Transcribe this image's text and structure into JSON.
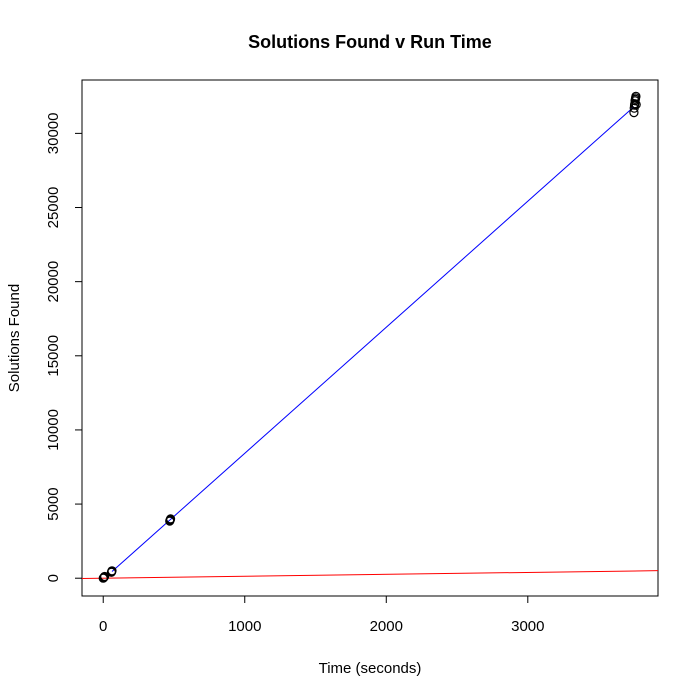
{
  "chart_data": {
    "type": "scatter",
    "title": "Solutions Found v Run Time",
    "xlabel": "Time (seconds)",
    "ylabel": "Solutions Found",
    "xlim": [
      -150,
      3920
    ],
    "ylim": [
      -1200,
      33600
    ],
    "xticks": [
      0,
      1000,
      2000,
      3000
    ],
    "yticks": [
      0,
      5000,
      10000,
      15000,
      20000,
      25000,
      30000
    ],
    "grid": false,
    "legend": "none",
    "points": [
      {
        "x": 0,
        "y": 0
      },
      {
        "x": 3,
        "y": 30
      },
      {
        "x": 5,
        "y": 60
      },
      {
        "x": 8,
        "y": 90
      },
      {
        "x": 10,
        "y": 120
      },
      {
        "x": 58,
        "y": 400
      },
      {
        "x": 60,
        "y": 450
      },
      {
        "x": 62,
        "y": 500
      },
      {
        "x": 470,
        "y": 3850
      },
      {
        "x": 472,
        "y": 3900
      },
      {
        "x": 474,
        "y": 3950
      },
      {
        "x": 476,
        "y": 4000
      },
      {
        "x": 3750,
        "y": 31400
      },
      {
        "x": 3752,
        "y": 31700
      },
      {
        "x": 3754,
        "y": 31900
      },
      {
        "x": 3756,
        "y": 32000
      },
      {
        "x": 3758,
        "y": 32200
      },
      {
        "x": 3760,
        "y": 32300
      },
      {
        "x": 3762,
        "y": 32400
      },
      {
        "x": 3764,
        "y": 32500
      },
      {
        "x": 3766,
        "y": 31950
      }
    ],
    "lines": [
      {
        "color": "#0000ff",
        "x": [
          62,
          3750
        ],
        "y": [
          450,
          31800
        ]
      },
      {
        "color": "#ff0000",
        "x": [
          -150,
          3920
        ],
        "y": [
          -20,
          510
        ]
      }
    ],
    "colors": {
      "points": "#000000",
      "axis": "#000000"
    }
  }
}
